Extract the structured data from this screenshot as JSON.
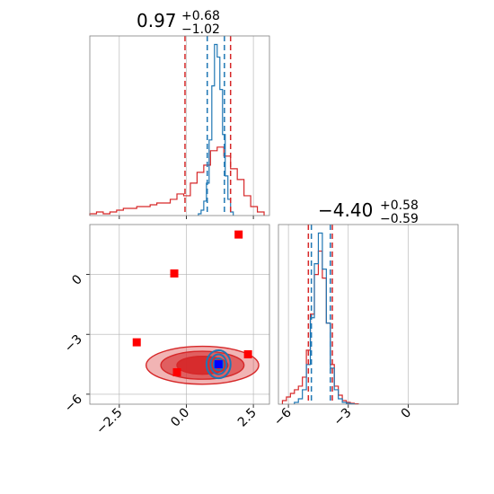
{
  "colors": {
    "red": "#d62728",
    "red_marker": "#ff0000",
    "blue": "#1f77b4",
    "blue_marker": "#0000ff",
    "grid": "#b0b0b0",
    "spine": "#808080"
  },
  "chart_data": [
    {
      "type": "histogram",
      "panel": "top-left",
      "title": {
        "value": "0.97",
        "upper": "+0.68",
        "lower": "−1.02"
      },
      "xlim": [
        -3.6,
        3.1
      ],
      "xticks": [
        -2.5,
        0.0,
        2.5
      ],
      "grid": true,
      "series": [
        {
          "color": "red",
          "bin_edges": [
            -3.6,
            -3.35,
            -3.1,
            -2.85,
            -2.6,
            -2.35,
            -2.1,
            -1.85,
            -1.6,
            -1.35,
            -1.1,
            -0.85,
            -0.6,
            -0.35,
            -0.1,
            0.15,
            0.4,
            0.65,
            0.9,
            1.15,
            1.4,
            1.65,
            1.9,
            2.15,
            2.4,
            2.65,
            2.9
          ],
          "heights": [
            0.01,
            0.02,
            0.01,
            0.02,
            0.03,
            0.04,
            0.04,
            0.05,
            0.05,
            0.06,
            0.07,
            0.07,
            0.09,
            0.12,
            0.11,
            0.18,
            0.24,
            0.28,
            0.36,
            0.38,
            0.33,
            0.26,
            0.2,
            0.11,
            0.05,
            0.02
          ]
        },
        {
          "color": "blue",
          "bin_edges": [
            0.45,
            0.55,
            0.65,
            0.75,
            0.85,
            0.95,
            1.05,
            1.15,
            1.25,
            1.35,
            1.45,
            1.55,
            1.65,
            1.75
          ],
          "heights": [
            0.01,
            0.03,
            0.08,
            0.18,
            0.42,
            0.72,
            0.95,
            0.88,
            0.7,
            0.45,
            0.22,
            0.09,
            0.02
          ]
        }
      ],
      "quantile_lines": [
        {
          "color": "red",
          "x": -0.05
        },
        {
          "color": "red",
          "x": 1.65
        },
        {
          "color": "blue",
          "x": 0.78
        },
        {
          "color": "blue",
          "x": 1.42
        }
      ]
    },
    {
      "type": "scatter",
      "panel": "bottom-left",
      "xlim": [
        -3.6,
        3.1
      ],
      "ylim": [
        -6.5,
        2.5
      ],
      "xticks": [
        -2.5,
        0.0,
        2.5
      ],
      "yticks": [
        0,
        -3,
        -6
      ],
      "grid": true,
      "contours": [
        {
          "color": "red",
          "filled": true,
          "cx": 0.6,
          "cy": -4.55,
          "levels": [
            {
              "rx": 2.1,
              "ry": 0.95
            },
            {
              "rx": 1.55,
              "ry": 0.7
            },
            {
              "rx": 0.95,
              "ry": 0.45
            }
          ]
        },
        {
          "color": "blue",
          "filled": false,
          "cx": 1.2,
          "cy": -4.5,
          "levels": [
            {
              "rx": 0.45,
              "ry": 0.7
            },
            {
              "rx": 0.3,
              "ry": 0.5
            },
            {
              "rx": 0.18,
              "ry": 0.3
            }
          ]
        }
      ],
      "markers": [
        {
          "color": "red",
          "x": 1.95,
          "y": 2.0
        },
        {
          "color": "red",
          "x": -0.45,
          "y": 0.05
        },
        {
          "color": "red",
          "x": -1.85,
          "y": -3.4
        },
        {
          "color": "red",
          "x": -0.35,
          "y": -4.9
        },
        {
          "color": "red",
          "x": 2.3,
          "y": -4.0
        },
        {
          "color": "blue",
          "x": 1.2,
          "y": -4.5
        }
      ]
    },
    {
      "type": "histogram",
      "panel": "bottom-right",
      "title": {
        "value": "−4.40",
        "upper": "+0.58",
        "lower": "−0.59"
      },
      "xlim": [
        -6.5,
        2.5
      ],
      "xticks": [
        -6,
        -3,
        0
      ],
      "grid": true,
      "series": [
        {
          "color": "red",
          "bin_edges": [
            -6.3,
            -6.1,
            -5.9,
            -5.7,
            -5.5,
            -5.3,
            -5.1,
            -4.9,
            -4.7,
            -4.5,
            -4.3,
            -4.1,
            -3.9,
            -3.7,
            -3.5,
            -3.3,
            -3.1,
            -2.9,
            -2.7,
            -2.5
          ],
          "heights": [
            0.02,
            0.04,
            0.06,
            0.08,
            0.1,
            0.15,
            0.3,
            0.5,
            0.72,
            0.85,
            0.7,
            0.45,
            0.22,
            0.1,
            0.05,
            0.02,
            0.01,
            0.005,
            0.002
          ]
        },
        {
          "color": "blue",
          "bin_edges": [
            -5.7,
            -5.5,
            -5.3,
            -5.1,
            -4.9,
            -4.7,
            -4.5,
            -4.3,
            -4.1,
            -3.9,
            -3.7,
            -3.5,
            -3.3,
            -3.1,
            -2.9,
            -2.7
          ],
          "heights": [
            0.01,
            0.03,
            0.08,
            0.22,
            0.48,
            0.78,
            0.95,
            0.75,
            0.45,
            0.2,
            0.08,
            0.03,
            0.01,
            0.005,
            0.002
          ]
        }
      ],
      "quantile_lines": [
        {
          "color": "red",
          "x": -5.0
        },
        {
          "color": "red",
          "x": -3.8
        },
        {
          "color": "blue",
          "x": -4.85
        },
        {
          "color": "blue",
          "x": -3.9
        }
      ]
    }
  ],
  "tick_labels": {
    "top_left_x": [
      "−2.5",
      "0.0",
      "2.5"
    ],
    "bottom_left_x": [
      "−2.5",
      "0.0",
      "2.5"
    ],
    "bottom_left_y": [
      "0",
      "−3",
      "−6"
    ],
    "bottom_right_x": [
      "−6",
      "−3",
      "0"
    ]
  }
}
